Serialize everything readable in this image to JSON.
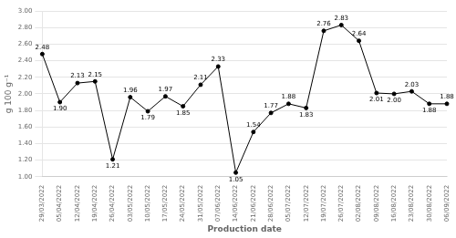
{
  "chart_data": {
    "type": "line",
    "x_label": "Production date",
    "y_label": "g 100 g⁻¹",
    "categories": [
      "29/03/2022",
      "05/04/2022",
      "12/04/2022",
      "19/04/2022",
      "26/04/2022",
      "03/05/2022",
      "10/05/2022",
      "17/05/2022",
      "24/05/2022",
      "31/05/2022",
      "07/06/2022",
      "14/06/2022",
      "21/06/2022",
      "28/06/2022",
      "05/07/2022",
      "12/07/2022",
      "19/07/2022",
      "26/07/2022",
      "02/08/2022",
      "09/08/2022",
      "16/08/2022",
      "23/08/2022",
      "30/08/2022",
      "06/09/2022"
    ],
    "values": [
      2.48,
      1.9,
      2.13,
      2.15,
      1.21,
      1.96,
      1.79,
      1.97,
      1.85,
      2.11,
      2.33,
      1.05,
      1.54,
      1.77,
      1.88,
      1.83,
      2.76,
      2.83,
      2.64,
      2.01,
      2.0,
      2.03,
      1.88,
      1.88
    ],
    "value_labels": [
      "2.48",
      "1.90",
      "2.13",
      "2.15",
      "1.21",
      "1.96",
      "1.79",
      "1.97",
      "1.85",
      "2.11",
      "2.33",
      "1.05",
      "1.54",
      "1.77",
      "1.88",
      "1.83",
      "2.76",
      "2.83",
      "2.64",
      "2.01",
      "2.00",
      "2.03",
      "1.88",
      "1.88"
    ],
    "data_labels": true,
    "color": "#000000",
    "marker": "circle",
    "ylim": [
      1.0,
      3.0
    ],
    "yticks": [
      {
        "value": 1.0,
        "label": "1.00"
      },
      {
        "value": 1.2,
        "label": "1.20"
      },
      {
        "value": 1.4,
        "label": "1.40"
      },
      {
        "value": 1.6,
        "label": "1.60"
      },
      {
        "value": 1.8,
        "label": "1.80"
      },
      {
        "value": 2.0,
        "label": "2.00"
      },
      {
        "value": 2.2,
        "label": "2.20"
      },
      {
        "value": 2.4,
        "label": "2.40"
      },
      {
        "value": 2.6,
        "label": "2.60"
      },
      {
        "value": 2.8,
        "label": "2.80"
      },
      {
        "value": 3.0,
        "label": "3.00"
      }
    ],
    "grid": true
  }
}
